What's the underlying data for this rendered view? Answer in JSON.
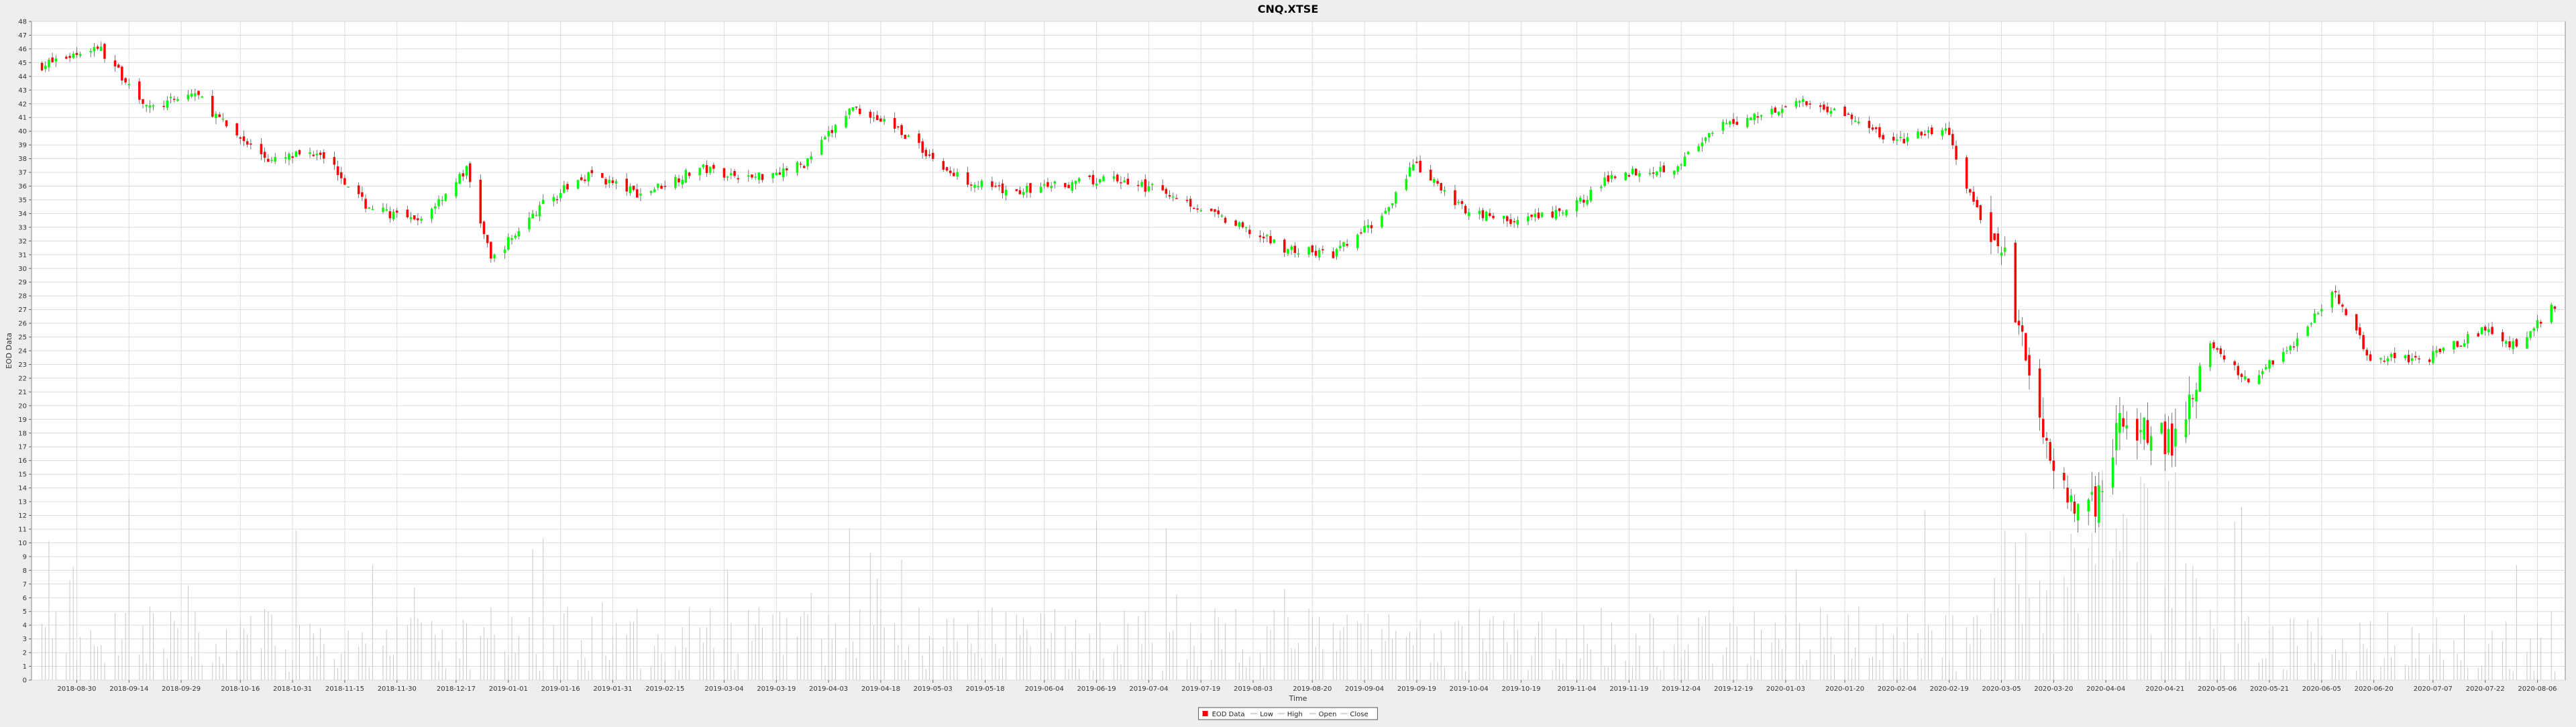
{
  "chart_data": {
    "type": "candlestick",
    "title": "CNQ.XTSE",
    "xlabel": "Time",
    "ylabel": "EOD Data",
    "ylim": [
      0,
      48
    ],
    "yticks": [
      0,
      1,
      2,
      3,
      4,
      5,
      6,
      7,
      8,
      9,
      10,
      11,
      12,
      13,
      14,
      15,
      16,
      17,
      18,
      19,
      20,
      21,
      22,
      23,
      24,
      25,
      26,
      27,
      28,
      29,
      30,
      31,
      32,
      33,
      34,
      35,
      36,
      37,
      38,
      39,
      40,
      41,
      42,
      43,
      44,
      45,
      46,
      47,
      48
    ],
    "xlim": [
      "2018-08-17",
      "2020-08-14"
    ],
    "xticks": [
      "2018-08-30",
      "2018-09-14",
      "2018-09-29",
      "2018-10-16",
      "2018-10-31",
      "2018-11-15",
      "2018-11-30",
      "2018-12-17",
      "2019-01-01",
      "2019-01-16",
      "2019-01-31",
      "2019-02-15",
      "2019-03-04",
      "2019-03-19",
      "2019-04-03",
      "2019-04-18",
      "2019-05-03",
      "2019-05-18",
      "2019-06-04",
      "2019-06-19",
      "2019-07-04",
      "2019-07-19",
      "2019-08-03",
      "2019-08-20",
      "2019-09-04",
      "2019-09-19",
      "2019-10-04",
      "2019-10-19",
      "2019-11-04",
      "2019-11-19",
      "2019-12-04",
      "2019-12-19",
      "2020-01-03",
      "2020-01-20",
      "2020-02-04",
      "2020-02-19",
      "2020-03-05",
      "2020-03-20",
      "2020-04-04",
      "2020-04-21",
      "2020-05-06",
      "2020-05-21",
      "2020-06-05",
      "2020-06-20",
      "2020-07-07",
      "2020-07-22",
      "2020-08-06"
    ],
    "grid": true,
    "legend_position": "bottom-center",
    "legend": [
      "EOD Data",
      "Low",
      "High",
      "Open",
      "Close"
    ],
    "colors": {
      "up": "#00ff00",
      "down": "#ff0000",
      "volume": "#c8c8c8",
      "grid": "#dcdcdc",
      "plot_bg": "#ffffff",
      "outline": "#555555"
    },
    "series": [
      {
        "name": "Close",
        "x": [
          "2018-08-20",
          "2018-09-05",
          "2018-09-20",
          "2018-10-03",
          "2018-10-12",
          "2018-10-25",
          "2018-11-08",
          "2018-11-21",
          "2018-12-06",
          "2018-12-20",
          "2018-12-27",
          "2019-01-11",
          "2019-01-24",
          "2019-02-08",
          "2019-02-25",
          "2019-03-12",
          "2019-03-27",
          "2019-04-10",
          "2019-04-23",
          "2019-05-08",
          "2019-05-24",
          "2019-06-11",
          "2019-06-25",
          "2019-07-11",
          "2019-07-25",
          "2019-08-13",
          "2019-08-26",
          "2019-09-09",
          "2019-09-18",
          "2019-10-02",
          "2019-10-17",
          "2019-11-01",
          "2019-11-15",
          "2019-12-02",
          "2019-12-16",
          "2020-01-06",
          "2020-01-17",
          "2020-02-03",
          "2020-02-18",
          "2020-02-26",
          "2020-03-06",
          "2020-03-13",
          "2020-03-18",
          "2020-03-25",
          "2020-04-01",
          "2020-04-09",
          "2020-04-23",
          "2020-05-04",
          "2020-05-15",
          "2020-05-29",
          "2020-06-08",
          "2020-06-19",
          "2020-07-06",
          "2020-07-21",
          "2020-07-31",
          "2020-08-11"
        ],
        "values": [
          44.8,
          46.2,
          41.6,
          42.8,
          40.3,
          37.8,
          38.6,
          34.6,
          33.3,
          37.2,
          30.6,
          34.7,
          36.9,
          35.4,
          37.3,
          36.6,
          37.6,
          41.8,
          40.2,
          36.9,
          35.5,
          36.2,
          36.5,
          35.4,
          33.6,
          31.4,
          31.0,
          33.8,
          37.6,
          34.4,
          33.4,
          34.1,
          36.9,
          37.4,
          40.4,
          42.1,
          41.6,
          39.2,
          40.2,
          34.6,
          30.3,
          22.0,
          17.8,
          12.5,
          13.0,
          19.2,
          17.4,
          24.5,
          21.8,
          24.8,
          28.4,
          23.5,
          23.5,
          25.5,
          24.3,
          27.4
        ]
      }
    ]
  }
}
